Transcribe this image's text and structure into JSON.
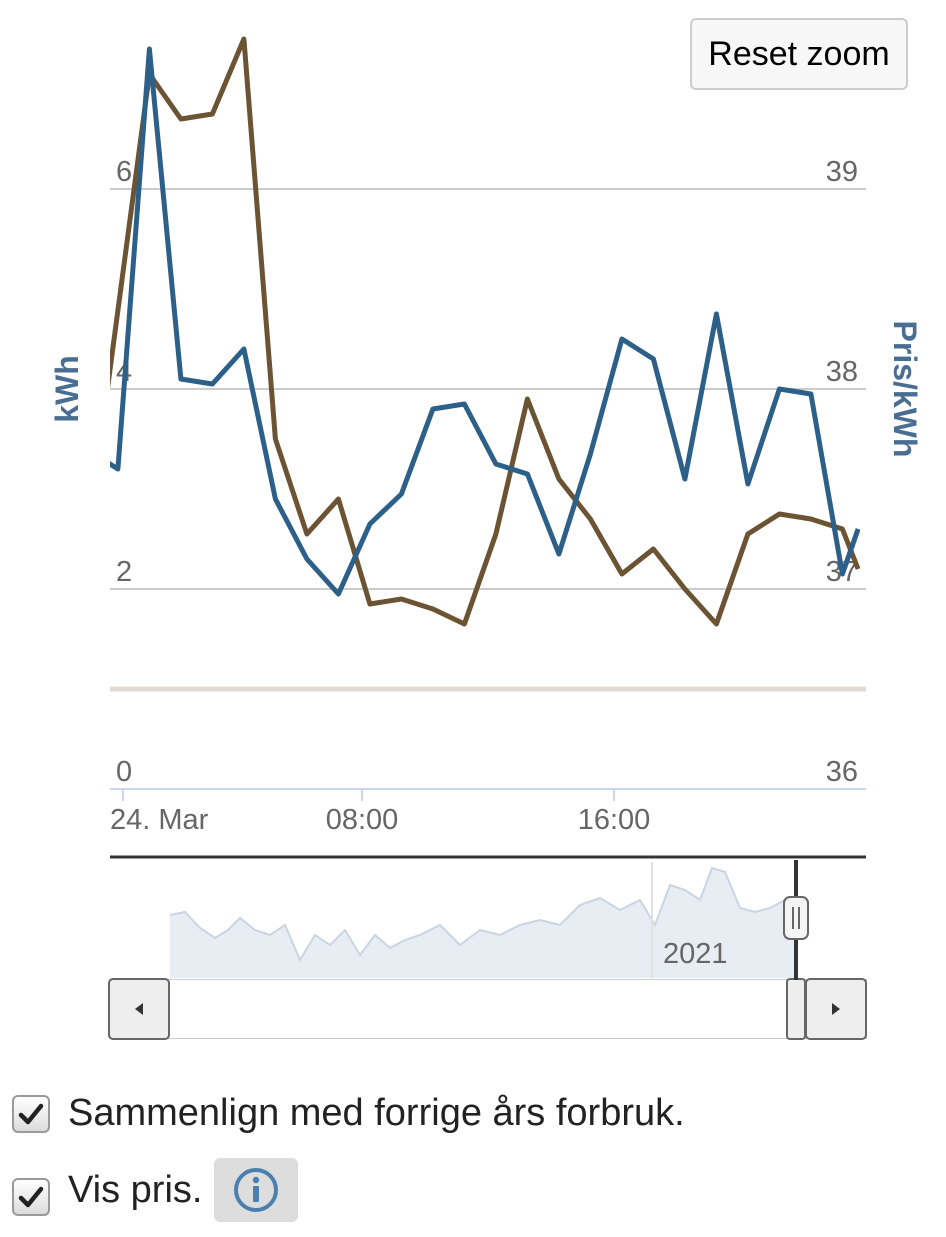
{
  "reset_zoom_label": "Reset zoom",
  "navigator_year": "2021",
  "options": [
    {
      "label": "Sammenlign med forrige års forbruk.",
      "checked": true
    },
    {
      "label": "Vis pris.",
      "checked": true
    }
  ],
  "icons": {
    "info": "info-icon",
    "checkbox": "checkmark-icon",
    "scroll_left": "arrow-left-icon",
    "scroll_right": "arrow-right-icon",
    "handle": "grip-icon"
  },
  "colors": {
    "consumption": "#2d6088",
    "previous_year": "#6b5333",
    "axis_title": "#4a6d92",
    "gridline": "#cccccc",
    "navigator_fill": "#e8edf4"
  },
  "chart_data": {
    "type": "line",
    "y_left": {
      "title": "kWh",
      "ticks": [
        "0",
        "2",
        "4",
        "6"
      ],
      "range": [
        0,
        8
      ]
    },
    "y_right": {
      "title": "Pris/kWh",
      "ticks": [
        "36",
        "37",
        "38",
        "39"
      ],
      "range": [
        36,
        40
      ]
    },
    "x": {
      "tick_labels": [
        "24. Mar",
        "08:00",
        "16:00"
      ],
      "start_hour": 0,
      "end_hour": 24
    },
    "series": [
      {
        "key": "current",
        "x": [
          -0.25,
          0.25,
          1.25,
          2.25,
          3.25,
          4.25,
          5.25,
          6.25,
          7.25,
          8.25,
          9.25,
          10.25,
          11.25,
          12.25,
          13.25,
          14.25,
          15.25,
          16.25,
          17.25,
          18.25,
          19.25,
          20.25,
          21.25,
          22.25,
          23.25,
          23.75
        ],
        "values": [
          3.3,
          3.2,
          7.4,
          4.1,
          4.05,
          4.4,
          2.9,
          2.3,
          1.95,
          2.65,
          2.95,
          3.8,
          3.85,
          3.25,
          3.15,
          2.35,
          3.35,
          4.5,
          4.3,
          3.1,
          4.75,
          3.05,
          4.0,
          3.95,
          2.15,
          2.6
        ]
      },
      {
        "key": "previous_year",
        "x": [
          -0.25,
          1.25,
          2.25,
          3.25,
          4.25,
          5.25,
          6.25,
          7.25,
          8.25,
          9.25,
          10.25,
          11.25,
          12.25,
          13.25,
          14.25,
          15.25,
          16.25,
          17.25,
          18.25,
          19.25,
          20.25,
          21.25,
          22.25,
          23.25,
          23.75
        ],
        "values": [
          3.6,
          7.15,
          6.7,
          6.75,
          7.5,
          3.5,
          2.55,
          2.9,
          1.85,
          1.9,
          1.8,
          1.65,
          2.55,
          3.9,
          3.1,
          2.7,
          2.15,
          2.4,
          2.0,
          1.65,
          2.55,
          2.75,
          2.7,
          2.6,
          2.2
        ]
      }
    ]
  }
}
